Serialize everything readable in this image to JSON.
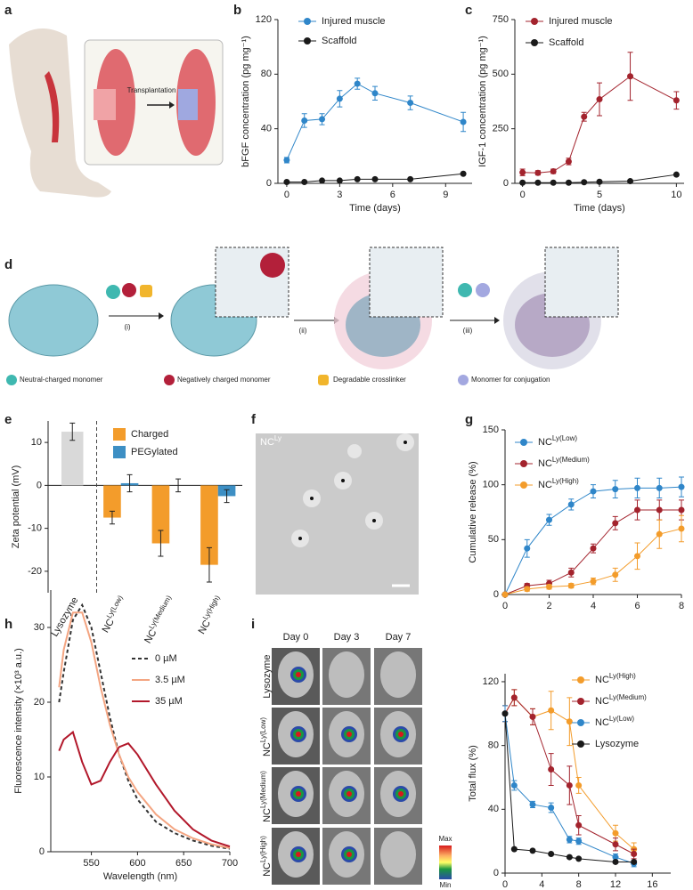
{
  "panel_labels": [
    "a",
    "b",
    "c",
    "d",
    "e",
    "f",
    "g",
    "h",
    "i"
  ],
  "panel_a": {
    "arrow_label": "Transplantation"
  },
  "panel_d": {
    "steps": [
      "(i)",
      "(ii)",
      "(iii)"
    ],
    "legend": [
      "Neutral-charged monomer",
      "Negatively charged monomer",
      "Degradable crosslinker",
      "Monomer for conjugation"
    ]
  },
  "panel_f": {
    "label": "NC",
    "label_sup": "Ly"
  },
  "panel_i": {
    "columns": [
      "Day 0",
      "Day 3",
      "Day 7"
    ],
    "rows": [
      {
        "text": "Lysozyme"
      },
      {
        "text": "NC",
        "sup": "Ly(Low)"
      },
      {
        "text": "NC",
        "sup": "Ly(Medium)"
      },
      {
        "text": "NC",
        "sup": "Ly(High)"
      }
    ],
    "colorbar": [
      "Max",
      "Min"
    ]
  },
  "chart_data": [
    {
      "type": "line",
      "ylabel": "bFGF concentration (pg mg⁻¹)",
      "xlabel": "Time (days)",
      "x": [
        0,
        1,
        2,
        3,
        4,
        5,
        7,
        10
      ],
      "series": [
        {
          "name": "Injured muscle",
          "color": "#2f86c9",
          "values": [
            17,
            46,
            47,
            62,
            73,
            66,
            59,
            45
          ],
          "err": [
            2,
            5,
            4,
            6,
            4,
            5,
            5,
            7
          ]
        },
        {
          "name": "Scaffold",
          "color": "#1a1a1a",
          "values": [
            1,
            1,
            2,
            2,
            3,
            3,
            3,
            7
          ]
        }
      ],
      "xlim": [
        -0.5,
        10.5
      ],
      "xticks": [
        0,
        3,
        6,
        9
      ],
      "ylim": [
        0,
        120
      ],
      "yticks": [
        0,
        40,
        80,
        120
      ],
      "markers": true
    },
    {
      "type": "line",
      "ylabel": "IGF-1 concentration (pg mg⁻¹)",
      "xlabel": "Time (days)",
      "x": [
        0,
        1,
        2,
        3,
        4,
        5,
        7,
        10
      ],
      "series": [
        {
          "name": "Injured muscle",
          "color": "#a3232d",
          "values": [
            50,
            48,
            55,
            100,
            305,
            385,
            490,
            380
          ],
          "err": [
            15,
            10,
            10,
            15,
            20,
            75,
            110,
            40
          ]
        },
        {
          "name": "Scaffold",
          "color": "#1a1a1a",
          "values": [
            3,
            3,
            3,
            3,
            5,
            7,
            10,
            40
          ]
        }
      ],
      "xlim": [
        -0.5,
        10.5
      ],
      "xticks": [
        0,
        5,
        10
      ],
      "ylim": [
        0,
        750
      ],
      "yticks": [
        0,
        250,
        500,
        750
      ],
      "markers": true
    },
    {
      "type": "bar",
      "ylabel": "Zeta potential (mV)",
      "categories": [
        "Lysozyme",
        "NC",
        "NC",
        "NC"
      ],
      "category_sups": [
        null,
        "Ly(Low)",
        "Ly(Medium)",
        "Ly(High)"
      ],
      "reference": {
        "color": "#d9d9d9",
        "values": [
          12.5,
          null,
          null,
          null
        ],
        "err": [
          2,
          null,
          null,
          null
        ]
      },
      "series": [
        {
          "name": "Charged",
          "color": "#f39c2b",
          "values": [
            null,
            -7.5,
            -13.5,
            -18.5
          ],
          "err": [
            null,
            1.5,
            3,
            4
          ]
        },
        {
          "name": "PEGylated",
          "color": "#3d8fc4",
          "values": [
            null,
            0.5,
            0,
            -2.5
          ],
          "err": [
            null,
            2,
            1.5,
            1.5
          ]
        }
      ],
      "ylim": [
        -25,
        15
      ],
      "yticks": [
        -20,
        -10,
        0,
        10
      ]
    },
    {
      "type": "line",
      "ylabel": "Cumulative release (%)",
      "x": [
        0,
        1,
        2,
        3,
        4,
        5,
        6,
        7,
        8
      ],
      "series": [
        {
          "name": "NC",
          "name_sup": "Ly(Low)",
          "color": "#2f86c9",
          "values": [
            0,
            42,
            68,
            82,
            94,
            96,
            97,
            97,
            98
          ],
          "err": [
            0,
            8,
            5,
            5,
            6,
            8,
            9,
            9,
            9
          ]
        },
        {
          "name": "NC",
          "name_sup": "Ly(Medium)",
          "color": "#a3232d",
          "values": [
            0,
            8,
            10,
            20,
            42,
            65,
            77,
            77,
            77
          ],
          "err": [
            0,
            2,
            3,
            4,
            4,
            6,
            9,
            9,
            9
          ]
        },
        {
          "name": "NC",
          "name_sup": "Ly(High)",
          "color": "#f39c2b",
          "values": [
            0,
            5,
            7,
            8,
            12,
            18,
            35,
            55,
            60
          ],
          "err": [
            0,
            2,
            2,
            2,
            3,
            6,
            12,
            13,
            12
          ]
        }
      ],
      "xlim": [
        0,
        8
      ],
      "xticks": [
        0,
        2,
        4,
        6,
        8
      ],
      "ylim": [
        0,
        150
      ],
      "yticks": [
        0,
        50,
        100,
        150
      ],
      "markers": true
    },
    {
      "type": "line",
      "ylabel": "Fluorescence intensity (×10³ a.u.)",
      "xlabel": "Wavelength (nm)",
      "x": [
        515,
        520,
        530,
        540,
        550,
        560,
        570,
        580,
        590,
        600,
        620,
        640,
        660,
        680,
        700
      ],
      "series": [
        {
          "name": "0 µM",
          "color": "#333333",
          "dash": true,
          "values": [
            20,
            24,
            31,
            33,
            30,
            24,
            18,
            13,
            9.5,
            7,
            4,
            2.5,
            1.5,
            0.8,
            0.4
          ]
        },
        {
          "name": "3.5 µM",
          "color": "#f4a582",
          "values": [
            22,
            27,
            32,
            32,
            28,
            22,
            17,
            13,
            10,
            8,
            5,
            3,
            1.8,
            1,
            0.5
          ]
        },
        {
          "name": "35 µM",
          "color": "#b2182b",
          "values": [
            13.5,
            15,
            16,
            12,
            9,
            9.5,
            12,
            14,
            14.5,
            13,
            9,
            5.5,
            3,
            1.5,
            0.7
          ]
        }
      ],
      "xlim": [
        506,
        700
      ],
      "xticks": [
        550,
        600,
        650,
        700
      ],
      "ylim": [
        0,
        35
      ],
      "yticks": [
        0,
        10,
        20,
        30
      ],
      "markers": false
    },
    {
      "type": "line",
      "ylabel": "Total flux (%)",
      "xlabel": "Time (days)",
      "x": [
        0,
        1,
        3,
        5,
        7,
        8,
        12,
        14
      ],
      "series": [
        {
          "name": "NC",
          "name_sup": "Ly(High)",
          "color": "#f39c2b",
          "values": [
            100,
            110,
            98,
            102,
            95,
            55,
            25,
            15
          ],
          "err": [
            5,
            5,
            5,
            12,
            15,
            5,
            5,
            4
          ]
        },
        {
          "name": "NC",
          "name_sup": "Ly(Medium)",
          "color": "#a3232d",
          "values": [
            100,
            110,
            98,
            65,
            55,
            30,
            18,
            12
          ],
          "err": [
            5,
            5,
            5,
            10,
            12,
            6,
            4,
            3
          ]
        },
        {
          "name": "NC",
          "name_sup": "Ly(Low)",
          "color": "#2f86c9",
          "values": [
            100,
            55,
            43,
            41,
            21,
            20,
            10,
            6
          ],
          "err": [
            5,
            3,
            2,
            3,
            2,
            2,
            2,
            2
          ]
        },
        {
          "name": "Lysozyme",
          "color": "#1a1a1a",
          "values": [
            100,
            15,
            14,
            12,
            10,
            9,
            7,
            7
          ]
        }
      ],
      "xlim": [
        0,
        18
      ],
      "xticks": [
        0,
        4,
        8,
        12,
        16
      ],
      "ylim": [
        0,
        125
      ],
      "yticks": [
        0,
        40,
        80,
        120
      ],
      "markers": true
    }
  ]
}
